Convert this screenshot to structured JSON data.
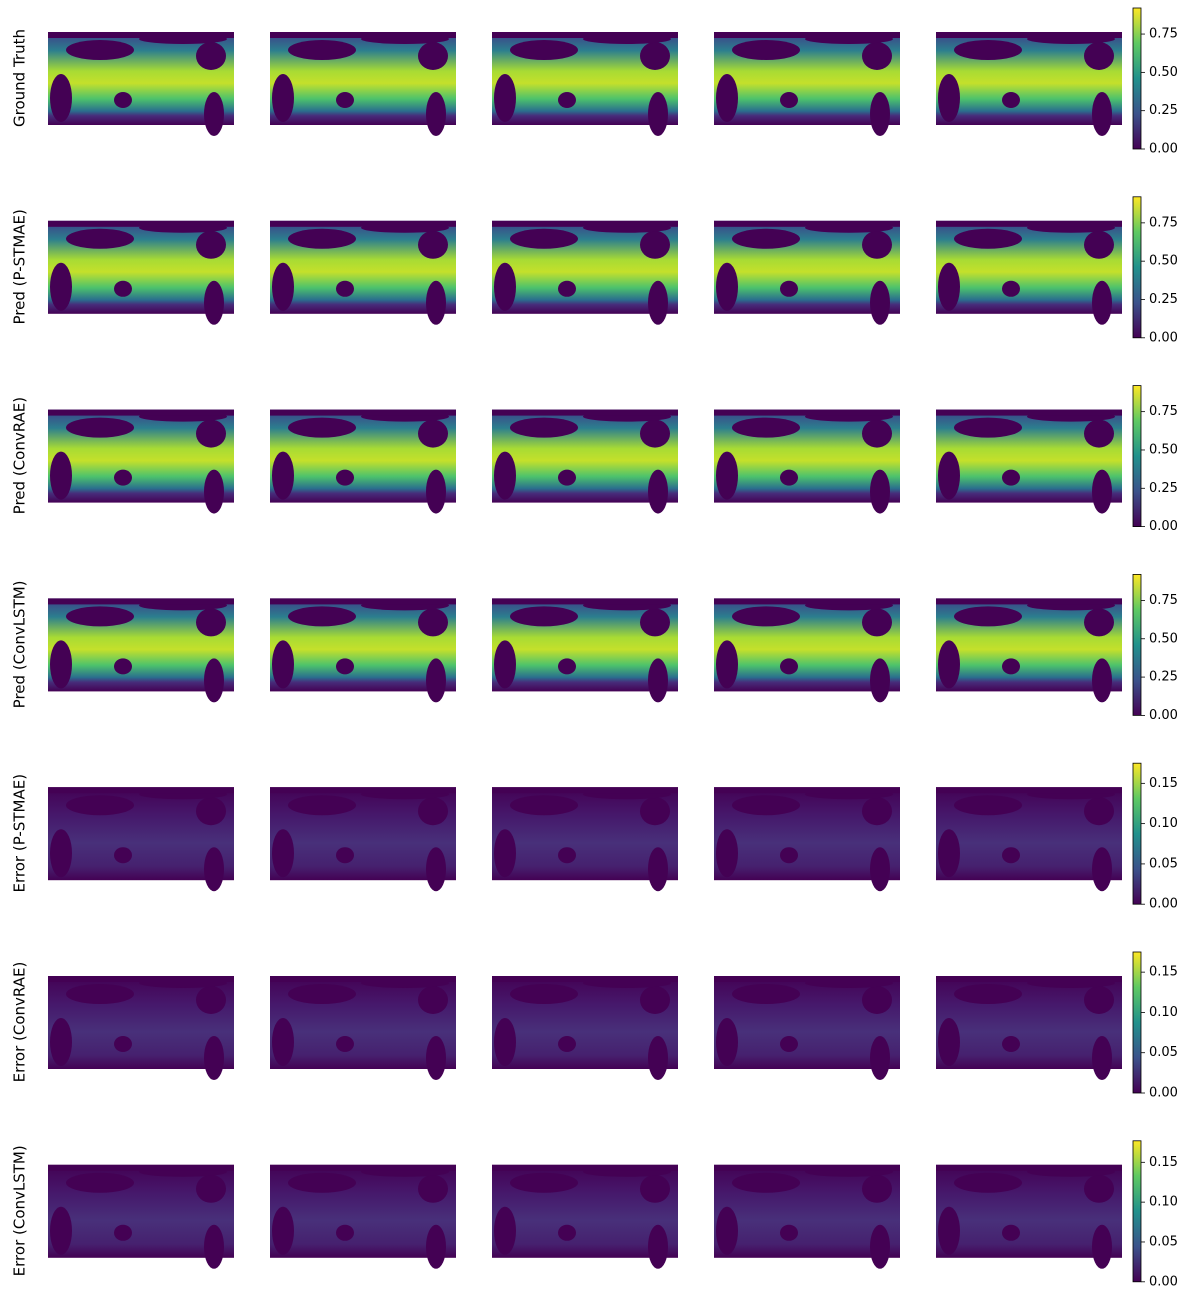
{
  "chart_data": [
    {
      "type": "heatmap",
      "ylabel": "Ground Truth",
      "clim": [
        0,
        0.92
      ],
      "cticks": [
        {
          "value": 0,
          "label": "0.00"
        },
        {
          "value": 0.25,
          "label": "0.25"
        },
        {
          "value": 0.5,
          "label": "0.50"
        },
        {
          "value": 0.75,
          "label": "0.75"
        }
      ]
    },
    {
      "type": "heatmap",
      "ylabel": "Pred (P-STMAE)",
      "clim": [
        0,
        0.92
      ],
      "cticks": [
        {
          "value": 0,
          "label": "0.00"
        },
        {
          "value": 0.25,
          "label": "0.25"
        },
        {
          "value": 0.5,
          "label": "0.50"
        },
        {
          "value": 0.75,
          "label": "0.75"
        }
      ]
    },
    {
      "type": "heatmap",
      "ylabel": "Pred (ConvRAE)",
      "clim": [
        0,
        0.92
      ],
      "cticks": [
        {
          "value": 0,
          "label": "0.00"
        },
        {
          "value": 0.25,
          "label": "0.25"
        },
        {
          "value": 0.5,
          "label": "0.50"
        },
        {
          "value": 0.75,
          "label": "0.75"
        }
      ]
    },
    {
      "type": "heatmap",
      "ylabel": "Pred (ConvLSTM)",
      "clim": [
        0,
        0.92
      ],
      "cticks": [
        {
          "value": 0,
          "label": "0.00"
        },
        {
          "value": 0.25,
          "label": "0.25"
        },
        {
          "value": 0.5,
          "label": "0.50"
        },
        {
          "value": 0.75,
          "label": "0.75"
        }
      ]
    },
    {
      "type": "heatmap",
      "ylabel": "Error (P-STMAE)",
      "clim": [
        0,
        0.175
      ],
      "cticks": [
        {
          "value": 0,
          "label": "0.00"
        },
        {
          "value": 0.05,
          "label": "0.05"
        },
        {
          "value": 0.1,
          "label": "0.10"
        },
        {
          "value": 0.15,
          "label": "0.15"
        }
      ]
    },
    {
      "type": "heatmap",
      "ylabel": "Error (ConvRAE)",
      "clim": [
        0,
        0.175
      ],
      "cticks": [
        {
          "value": 0,
          "label": "0.00"
        },
        {
          "value": 0.05,
          "label": "0.05"
        },
        {
          "value": 0.1,
          "label": "0.10"
        },
        {
          "value": 0.15,
          "label": "0.15"
        }
      ]
    },
    {
      "type": "heatmap",
      "ylabel": "Error (ConvLSTM)",
      "clim": [
        0,
        0.177
      ],
      "cticks": [
        {
          "value": 0,
          "label": "0.00"
        },
        {
          "value": 0.05,
          "label": "0.05"
        },
        {
          "value": 0.1,
          "label": "0.10"
        },
        {
          "value": 0.15,
          "label": "0.15"
        }
      ]
    }
  ]
}
